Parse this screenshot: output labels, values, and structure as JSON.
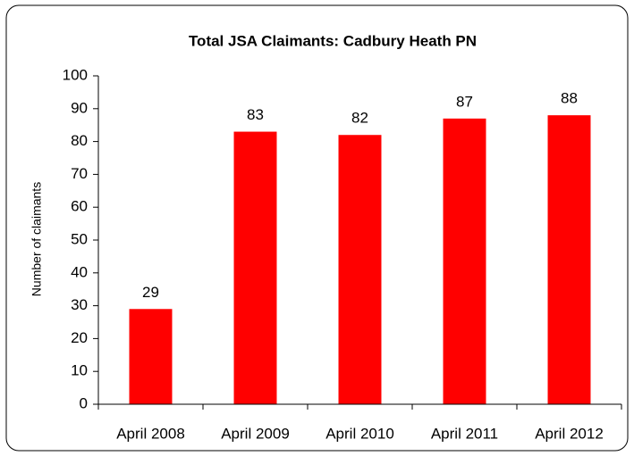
{
  "chart_data": {
    "type": "bar",
    "title": "Total JSA Claimants: Cadbury Heath PN",
    "y_label": "Number of claimants",
    "categories": [
      "April 2008",
      "April 2009",
      "April 2010",
      "April 2011",
      "April 2012"
    ],
    "values": [
      29,
      83,
      82,
      87,
      88
    ],
    "color": "#ff0000",
    "ylim": [
      0,
      100
    ],
    "yticks": [
      0,
      10,
      20,
      30,
      40,
      50,
      60,
      70,
      80,
      90,
      100
    ],
    "grid": false
  }
}
